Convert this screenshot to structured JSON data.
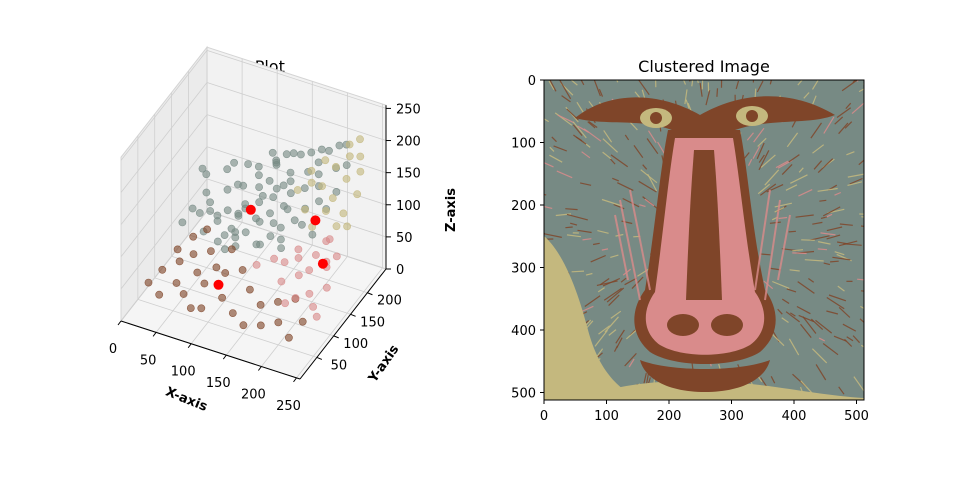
{
  "chart_data": [
    {
      "type": "scatter",
      "subtype": "3d-scatter",
      "title": "3D Plot",
      "xlabel": "X-axis",
      "ylabel": "Y-axis",
      "zlabel": "Z-axis",
      "xlim": [
        0,
        255
      ],
      "ylim": [
        0,
        255
      ],
      "zlim": [
        0,
        255
      ],
      "x_ticks": [
        "0",
        "50",
        "100",
        "150",
        "200",
        "250"
      ],
      "y_ticks": [
        "50",
        "100",
        "150",
        "200"
      ],
      "z_ticks": [
        "0",
        "50",
        "100",
        "150",
        "200",
        "250"
      ],
      "grid": true,
      "cluster_colors": [
        "#778a84",
        "#7f4529",
        "#d98b8b",
        "#c4b87e"
      ],
      "centroid_color": "#ff0000",
      "centroids": [
        {
          "x": 120,
          "y": 135,
          "z": 125
        },
        {
          "x": 110,
          "y": 60,
          "z": 55
        },
        {
          "x": 230,
          "y": 120,
          "z": 90
        },
        {
          "x": 200,
          "y": 160,
          "z": 120
        }
      ],
      "series": [
        {
          "points": [
            [
              20,
              200,
              110
            ],
            [
              35,
              180,
              120
            ],
            [
              50,
              160,
              95
            ],
            [
              60,
              190,
              130
            ],
            [
              70,
              170,
              115
            ],
            [
              80,
              150,
              100
            ],
            [
              85,
              200,
              140
            ],
            [
              90,
              175,
              125
            ],
            [
              95,
              130,
              90
            ],
            [
              100,
              160,
              110
            ],
            [
              105,
              190,
              150
            ],
            [
              110,
              140,
              120
            ],
            [
              115,
              170,
              135
            ],
            [
              120,
              120,
              100
            ],
            [
              125,
              200,
              160
            ],
            [
              130,
              150,
              140
            ],
            [
              135,
              180,
              170
            ],
            [
              140,
              110,
              95
            ],
            [
              145,
              160,
              150
            ],
            [
              150,
              200,
              180
            ],
            [
              155,
              130,
              120
            ],
            [
              160,
              170,
              160
            ],
            [
              165,
              190,
              190
            ],
            [
              170,
              140,
              140
            ],
            [
              175,
              110,
              115
            ],
            [
              180,
              180,
              175
            ],
            [
              185,
              160,
              165
            ],
            [
              190,
              200,
              200
            ],
            [
              195,
              140,
              150
            ],
            [
              200,
              170,
              185
            ],
            [
              205,
              190,
              210
            ],
            [
              210,
              150,
              160
            ],
            [
              215,
              120,
              130
            ],
            [
              220,
              180,
              195
            ],
            [
              225,
              200,
              220
            ],
            [
              230,
              160,
              175
            ],
            [
              100,
              100,
              80
            ],
            [
              90,
              120,
              85
            ],
            [
              110,
              180,
              145
            ],
            [
              130,
              190,
              165
            ],
            [
              150,
              170,
              150
            ],
            [
              160,
              150,
              135
            ],
            [
              140,
              200,
              175
            ],
            [
              120,
              160,
              120
            ],
            [
              80,
              180,
              120
            ],
            [
              70,
              140,
              95
            ],
            [
              60,
              120,
              80
            ],
            [
              55,
              150,
              90
            ],
            [
              65,
              200,
              135
            ],
            [
              75,
              130,
              95
            ],
            [
              85,
              110,
              80
            ],
            [
              95,
              150,
              100
            ],
            [
              105,
              120,
              95
            ],
            [
              115,
              100,
              90
            ],
            [
              125,
              140,
              110
            ],
            [
              135,
              130,
              115
            ],
            [
              145,
              140,
              125
            ],
            [
              155,
              180,
              165
            ],
            [
              165,
              160,
              150
            ],
            [
              175,
              200,
              190
            ],
            [
              185,
              130,
              135
            ],
            [
              195,
              180,
              195
            ],
            [
              205,
              160,
              175
            ],
            [
              215,
              200,
              215
            ],
            [
              225,
              140,
              160
            ],
            [
              235,
              180,
              205
            ],
            [
              40,
              170,
              100
            ],
            [
              45,
              140,
              90
            ],
            [
              30,
              150,
              85
            ],
            [
              25,
              130,
              75
            ],
            [
              200,
              120,
              140
            ],
            [
              180,
              100,
              110
            ],
            [
              170,
              120,
              125
            ],
            [
              160,
              110,
              115
            ],
            [
              150,
              100,
              105
            ],
            [
              140,
              160,
              135
            ],
            [
              130,
              170,
              150
            ],
            [
              120,
              200,
              170
            ],
            [
              110,
              110,
              95
            ],
            [
              100,
              140,
              105
            ]
          ]
        },
        {
          "points": [
            [
              20,
              40,
              40
            ],
            [
              30,
              60,
              50
            ],
            [
              40,
              30,
              35
            ],
            [
              45,
              80,
              55
            ],
            [
              55,
              50,
              45
            ],
            [
              60,
              90,
              65
            ],
            [
              70,
              40,
              40
            ],
            [
              75,
              70,
              55
            ],
            [
              80,
              100,
              70
            ],
            [
              90,
              60,
              50
            ],
            [
              100,
              30,
              35
            ],
            [
              110,
              80,
              60
            ],
            [
              120,
              50,
              45
            ],
            [
              130,
              90,
              65
            ],
            [
              140,
              40,
              35
            ],
            [
              150,
              70,
              55
            ],
            [
              160,
              30,
              30
            ],
            [
              170,
              60,
              45
            ],
            [
              180,
              40,
              30
            ],
            [
              190,
              70,
              50
            ],
            [
              200,
              50,
              35
            ],
            [
              210,
              80,
              55
            ],
            [
              220,
              40,
              25
            ],
            [
              230,
              60,
              40
            ],
            [
              50,
              110,
              75
            ],
            [
              65,
              120,
              85
            ],
            [
              85,
              30,
              30
            ],
            [
              95,
              85,
              60
            ],
            [
              105,
              110,
              75
            ],
            [
              35,
              95,
              60
            ]
          ]
        },
        {
          "points": [
            [
              150,
              90,
              80
            ],
            [
              170,
              100,
              90
            ],
            [
              190,
              80,
              75
            ],
            [
              200,
              110,
              95
            ],
            [
              210,
              90,
              85
            ],
            [
              220,
              100,
              90
            ],
            [
              230,
              80,
              70
            ],
            [
              240,
              110,
              95
            ],
            [
              250,
              90,
              80
            ],
            [
              245,
              130,
              100
            ],
            [
              235,
              120,
              95
            ],
            [
              225,
              140,
              110
            ],
            [
              215,
              70,
              65
            ],
            [
              205,
              60,
              60
            ],
            [
              195,
              120,
              100
            ],
            [
              185,
              100,
              90
            ],
            [
              240,
              70,
              60
            ],
            [
              250,
              60,
              55
            ],
            [
              220,
              120,
              100
            ],
            [
              230,
              140,
              115
            ]
          ]
        },
        {
          "points": [
            [
              170,
              170,
              150
            ],
            [
              180,
              190,
              170
            ],
            [
              190,
              150,
              140
            ],
            [
              200,
              180,
              160
            ],
            [
              210,
              200,
              180
            ],
            [
              220,
              170,
              155
            ],
            [
              230,
              190,
              175
            ],
            [
              240,
              160,
              145
            ],
            [
              250,
              180,
              165
            ],
            [
              245,
              200,
              185
            ],
            [
              235,
              150,
              130
            ],
            [
              225,
              210,
              195
            ],
            [
              215,
              160,
              140
            ],
            [
              205,
              140,
              125
            ],
            [
              195,
              200,
              185
            ],
            [
              185,
              180,
              160
            ],
            [
              250,
              150,
              135
            ],
            [
              240,
              210,
              200
            ],
            [
              230,
              230,
              210
            ],
            [
              220,
              220,
              205
            ]
          ]
        }
      ]
    },
    {
      "type": "heatmap",
      "subtype": "image",
      "title": "Clustered Image",
      "xlim": [
        0,
        511
      ],
      "ylim": [
        511,
        0
      ],
      "x_ticks": [
        "0",
        "100",
        "200",
        "300",
        "400",
        "500"
      ],
      "y_ticks": [
        "0",
        "100",
        "200",
        "300",
        "400",
        "500"
      ],
      "palette": [
        "#778a84",
        "#7f4529",
        "#d98b8b",
        "#c4b87e"
      ]
    }
  ]
}
